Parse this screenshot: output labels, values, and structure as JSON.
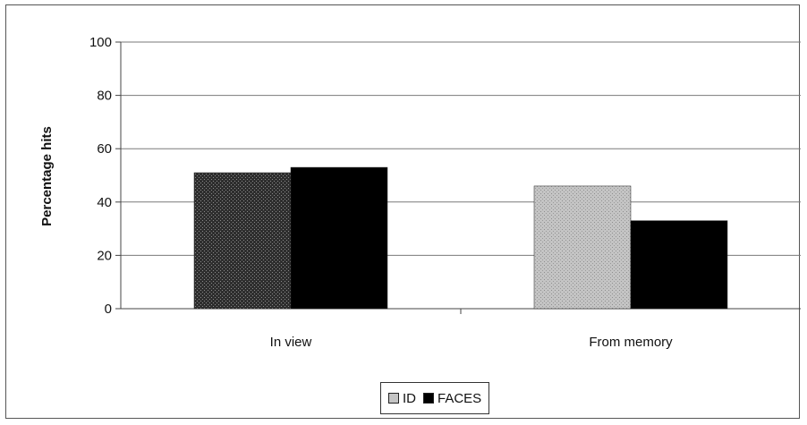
{
  "chart_data": {
    "type": "bar",
    "title": "",
    "xlabel": "",
    "ylabel": "Percentage hits",
    "ylim": [
      0,
      100
    ],
    "yticks": [
      0,
      20,
      40,
      60,
      80,
      100
    ],
    "categories": [
      "In view",
      "From memory"
    ],
    "series": [
      {
        "name": "ID",
        "values": [
          51,
          46
        ],
        "colors": [
          "#3a3a3a",
          "#bdbdbd"
        ]
      },
      {
        "name": "FACES",
        "values": [
          53,
          33
        ],
        "colors": [
          "#000000",
          "#000000"
        ]
      }
    ],
    "grid": true,
    "legend_position": "bottom"
  }
}
